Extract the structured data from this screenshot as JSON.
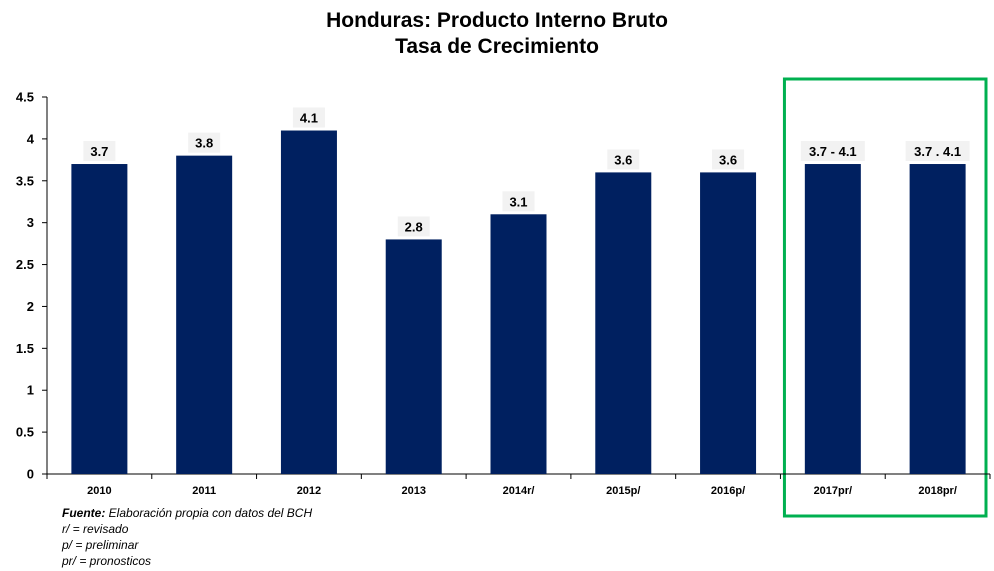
{
  "chart_data": {
    "type": "bar",
    "title": [
      "Honduras: Producto  Interno Bruto",
      "Tasa de Crecimiento"
    ],
    "categories": [
      "2010",
      "2011",
      "2012",
      "2013",
      "2014r/",
      "2015p/",
      "2016p/",
      "2017pr/",
      "2018pr/"
    ],
    "values": [
      3.7,
      3.8,
      4.1,
      2.8,
      3.1,
      3.6,
      3.6,
      3.7,
      3.7
    ],
    "data_labels": [
      "3.7",
      "3.8",
      "4.1",
      "2.8",
      "3.1",
      "3.6",
      "3.6",
      "3.7 - 4.1",
      "3.7 . 4.1"
    ],
    "yticks": [
      "0",
      "0.5",
      "1",
      "1.5",
      "2",
      "2.5",
      "3",
      "3.5",
      "4",
      "4.5"
    ],
    "ylim": [
      0,
      4.5
    ],
    "grid": false,
    "highlight_categories": [
      "2017pr/",
      "2018pr/"
    ],
    "colors": {
      "bar": "#002060",
      "label_bg": "#f2f2f2",
      "highlight_box": "#00b050",
      "axis": "#000000"
    }
  },
  "notes": {
    "source_prefix": "Fuente:",
    "source_text": " Elaboración propia con datos del BCH",
    "line1": "r/ = revisado",
    "line2": "p/ = preliminar",
    "line3": "pr/ = pronosticos"
  }
}
